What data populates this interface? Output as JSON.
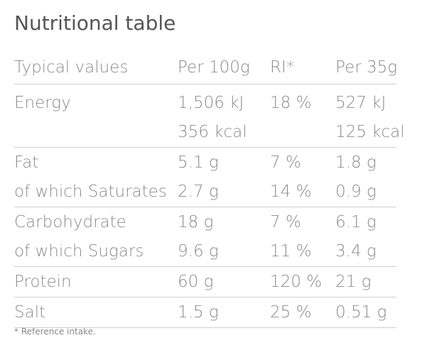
{
  "header": {
    "title": "Nutritional table"
  },
  "table": {
    "columns": [
      "Typical values",
      "Per 100g",
      "RI*",
      "Per 35g"
    ],
    "groups": [
      {
        "rows": [
          {
            "label": "Energy",
            "per_100g": "1,506 kJ",
            "ri": "18 %",
            "per_35g": "527 kJ"
          },
          {
            "per_100g": "356 kcal",
            "per_35g": "125 kcal"
          }
        ]
      },
      {
        "rows": [
          {
            "label": "Fat",
            "per_100g": "5.1 g",
            "ri": "7 %",
            "per_35g": "1.8 g"
          },
          {
            "label": "of which Saturates",
            "per_100g": "2.7 g",
            "ri": "14 %",
            "per_35g": "0.9 g"
          }
        ]
      },
      {
        "rows": [
          {
            "label": "Carbohydrate",
            "per_100g": "18 g",
            "ri": "7 %",
            "per_35g": "6.1 g"
          },
          {
            "label": "of which Sugars",
            "per_100g": "9.6 g",
            "ri": "11 %",
            "per_35g": "3.4 g"
          }
        ]
      },
      {
        "rows": [
          {
            "label": "Protein",
            "per_100g": "60 g",
            "ri": "120 %",
            "per_35g": "21 g"
          }
        ]
      },
      {
        "rows": [
          {
            "label": "Salt",
            "per_100g": "1.5 g",
            "ri": "25 %",
            "per_35g": "0.51 g"
          }
        ]
      }
    ]
  },
  "footnote": "* Reference intake."
}
